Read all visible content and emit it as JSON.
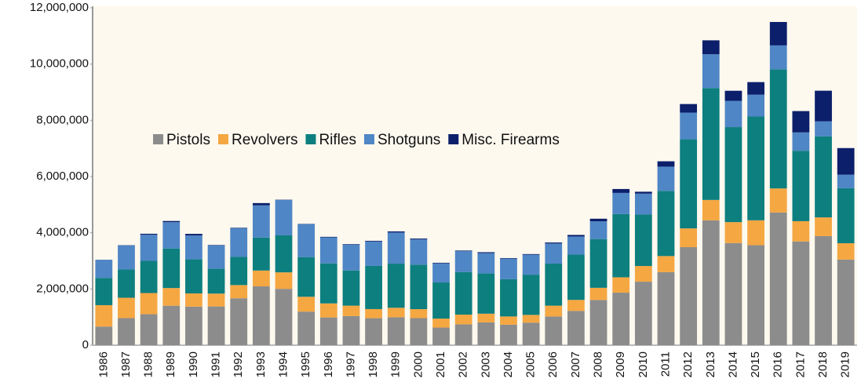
{
  "chart_data": {
    "type": "stacked-bar",
    "categories": [
      "1986",
      "1987",
      "1988",
      "1989",
      "1990",
      "1991",
      "1992",
      "1993",
      "1994",
      "1995",
      "1996",
      "1997",
      "1998",
      "1999",
      "2000",
      "2001",
      "2002",
      "2003",
      "2004",
      "2005",
      "2006",
      "2007",
      "2008",
      "2009",
      "2010",
      "2011",
      "2012",
      "2013",
      "2014",
      "2015",
      "2016",
      "2017",
      "2018",
      "2019"
    ],
    "series": [
      {
        "name": "Pistols",
        "color": "#8c8c8c",
        "values": [
          662973,
          964561,
          1101011,
          1404753,
          1371427,
          1378252,
          1669537,
          2093362,
          2004298,
          1195284,
          987528,
          1036077,
          960365,
          995446,
          962901,
          626836,
          741514,
          811660,
          728511,
          803425,
          1021260,
          1219664,
          1609381,
          1868258,
          2258450,
          2598133,
          3487883,
          4441726,
          3633454,
          3557199,
          4720075,
          3691010,
          3881158,
          3046013
        ]
      },
      {
        "name": "Revolvers",
        "color": "#f5a742",
        "values": [
          761414,
          722512,
          754744,
          628573,
          470495,
          456966,
          469413,
          562292,
          586450,
          527664,
          498944,
          370428,
          324390,
          335784,
          318960,
          320143,
          347070,
          309364,
          294099,
          274205,
          385069,
          391334,
          431753,
          547195,
          558927,
          572857,
          667357,
          725282,
          744047,
          885259,
          856291,
          720917,
          664835,
          580601
        ]
      },
      {
        "name": "Rifles",
        "color": "#0d7f7f",
        "values": [
          970507,
          1007661,
          1144707,
          1407400,
          1211664,
          883482,
          1001833,
          1173694,
          1316607,
          1411120,
          1424315,
          1251341,
          1535690,
          1569685,
          1583042,
          1284554,
          1515286,
          1430324,
          1325138,
          1431372,
          1496505,
          1610923,
          1734536,
          2248851,
          1830556,
          2318088,
          3168206,
          3979570,
          3379549,
          3691799,
          4239335,
          2504092,
          2880536,
          1957667
        ]
      },
      {
        "name": "Shotguns",
        "color": "#4f86c6",
        "values": [
          641482,
          857949,
          928070,
          935541,
          848948,
          828426,
          1018204,
          1144940,
          1254926,
          1173645,
          925732,
          915978,
          868639,
          1106995,
          898442,
          679813,
          741325,
          726078,
          731769,
          709313,
          714618,
          645231,
          630710,
          752699,
          743378,
          862401,
          949010,
          1203072,
          935411,
          777273,
          848617,
          653139,
          536126,
          480735
        ]
      },
      {
        "name": "Misc. Firearms",
        "color": "#0b1f6b",
        "values": [
          4558,
          6980,
          35345,
          42126,
          57434,
          15980,
          16849,
          81349,
          10936,
          8629,
          17920,
          19680,
          24506,
          39837,
          30196,
          21309,
          21700,
          30978,
          19508,
          23179,
          35872,
          55461,
          92564,
          138815,
          67929,
          190407,
          306154,
          495142,
          358165,
          447131,
          833123,
          758634,
          1089973,
          946929
        ]
      }
    ],
    "ylim": [
      0,
      12000000
    ],
    "yticks": [
      0,
      {
        "value": 2000000,
        "label": "2,000,000"
      },
      {
        "value": 4000000,
        "label": "4,000,000"
      },
      {
        "value": 6000000,
        "label": "6,000,000"
      },
      {
        "value": 8000000,
        "label": "8,000,000"
      },
      {
        "value": 10000000,
        "label": "10,000,000"
      },
      {
        "value": 12000000,
        "label": "12,000,000"
      }
    ],
    "legend": "middle-left"
  }
}
